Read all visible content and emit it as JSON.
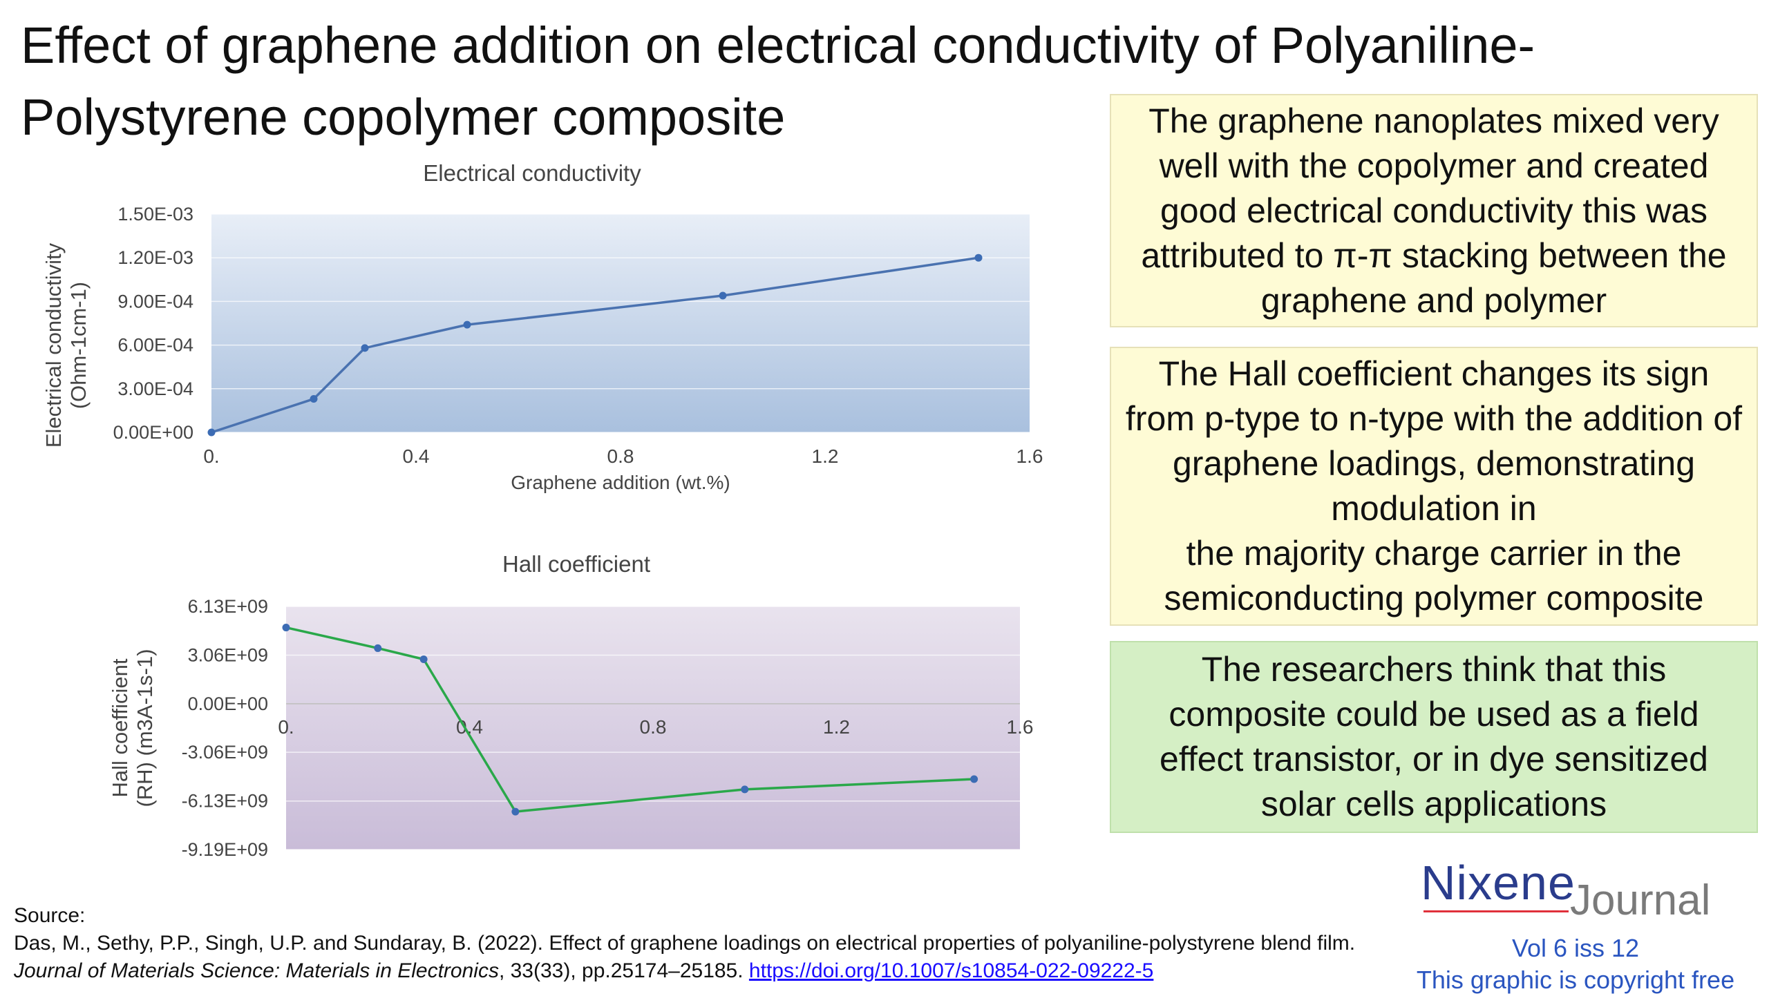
{
  "title": "Effect of graphene addition on electrical conductivity of Polyaniline-Polystyrene copolymer composite",
  "chart_data": [
    {
      "type": "line",
      "title": "Electrical conductivity",
      "xlabel": "Graphene addition (wt.%)",
      "ylabel": [
        "Electrical conductivity",
        "(Ohm-1cm-1)"
      ],
      "x_ticks": [
        "0.",
        "0.4",
        "0.8",
        "1.2",
        "1.6"
      ],
      "x_tick_values": [
        0,
        0.4,
        0.8,
        1.2,
        1.6
      ],
      "y_ticks": [
        "0.00E+00",
        "3.00E-04",
        "6.00E-04",
        "9.00E-04",
        "1.20E-03",
        "1.50E-03"
      ],
      "y_tick_values": [
        0,
        0.0003,
        0.0006,
        0.0009,
        0.0012,
        0.0015
      ],
      "xlim": [
        0,
        1.6
      ],
      "ylim": [
        0,
        0.0015
      ],
      "series": [
        {
          "color": "#4a72b0",
          "x": [
            0,
            0.2,
            0.3,
            0.5,
            1.0,
            1.5
          ],
          "y": [
            0,
            0.00023,
            0.00058,
            0.00074,
            0.00094,
            0.0012
          ]
        }
      ],
      "grid": true,
      "background": [
        "#e8eef7",
        "#a9c0de"
      ]
    },
    {
      "type": "line",
      "title": "Hall coefficient",
      "xlabel": "",
      "ylabel": [
        "Hall coefficient",
        "(RH) (m3A-1s-1)"
      ],
      "x_ticks": [
        "0.",
        "0.4",
        "0.8",
        "1.2",
        "1.6"
      ],
      "x_tick_values": [
        0,
        0.4,
        0.8,
        1.2,
        1.6
      ],
      "y_ticks": [
        "-9.19E+09",
        "-6.13E+09",
        "-3.06E+09",
        "0.00E+00",
        "3.06E+09",
        "6.13E+09"
      ],
      "y_tick_values": [
        -9190000000,
        -6130000000,
        -3060000000,
        0,
        3060000000,
        6130000000
      ],
      "xlim": [
        0,
        1.6
      ],
      "ylim": [
        -9190000000,
        6130000000
      ],
      "series": [
        {
          "color": "#2aa84a",
          "x": [
            0,
            0.2,
            0.3,
            0.5,
            1.0,
            1.5
          ],
          "y": [
            4800000000,
            3500000000,
            2800000000,
            -6800000000,
            -5400000000,
            -4750000000
          ]
        }
      ],
      "grid": true,
      "background": [
        "#e9e3ee",
        "#c9bcd8"
      ]
    }
  ],
  "boxes": [
    {
      "text": "The graphene nanoplates mixed very well with the copolymer and created good electrical conductivity this was attributed to π-π stacking between the graphene and polymer",
      "color": "#fefbd5"
    },
    {
      "text_lines": [
        "The Hall coefficient changes its sign from p-type to n-type with the addition of graphene loadings, demonstrating modulation in",
        "the majority charge carrier in the semiconducting polymer composite"
      ],
      "color": "#fefbd5"
    },
    {
      "text": "The researchers think that this composite could be used as a field effect transistor, or in dye sensitized solar cells applications",
      "color": "#d5efc5"
    }
  ],
  "source": {
    "label": "Source:",
    "citation_part1": "Das, M., Sethy, P.P., Singh, U.P. and Sundaray, B. (2022). Effect of graphene loadings on electrical properties of polyaniline-polystyrene blend film. ",
    "journal": "Journal of Materials Science: Materials in Electronics",
    "citation_part2": ", 33(33), pp.25174–25185. ",
    "link": "https://doi.org/10.1007/s10854-022-09222-5"
  },
  "logo": {
    "name": "Nixene",
    "suffix": "Journal"
  },
  "footer": {
    "volume": "Vol 6 iss 12",
    "copyright": "This graphic is copyright free"
  }
}
